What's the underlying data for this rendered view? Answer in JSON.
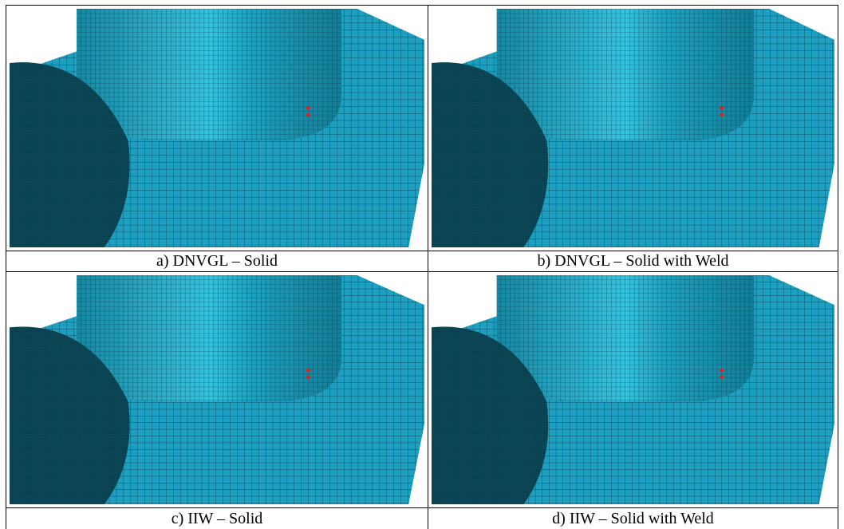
{
  "panels": [
    {
      "caption": "a) DNVGL – Solid"
    },
    {
      "caption": "b) DNVGL – Solid with Weld"
    },
    {
      "caption": "c) IIW – Solid"
    },
    {
      "caption": "d) IIW – Solid with Weld"
    }
  ]
}
